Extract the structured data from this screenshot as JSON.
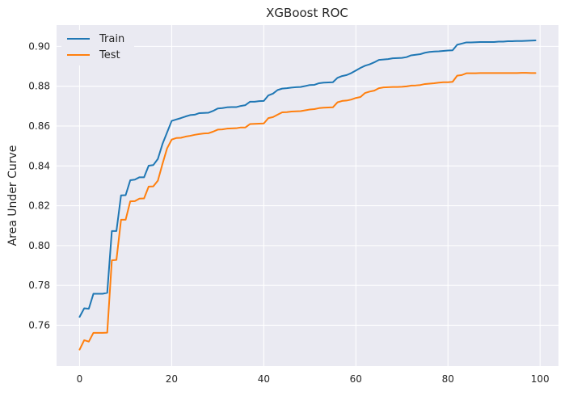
{
  "chart_data": {
    "type": "line",
    "title": "XGBoost ROC",
    "xlabel": "",
    "ylabel": "Area Under Curve",
    "xlim": [
      -5,
      104
    ],
    "ylim": [
      0.7395,
      0.9107
    ],
    "xticks": [
      0,
      20,
      40,
      60,
      80,
      100
    ],
    "yticks": [
      0.76,
      0.78,
      0.8,
      0.82,
      0.84,
      0.86,
      0.88,
      0.9
    ],
    "ytick_labels": [
      "0.76",
      "0.78",
      "0.80",
      "0.82",
      "0.84",
      "0.86",
      "0.88",
      "0.90"
    ],
    "xtick_labels": [
      "0",
      "20",
      "40",
      "60",
      "80",
      "100"
    ],
    "grid": true,
    "legend_position": "top-left",
    "colors": {
      "background": "#eaeaf2",
      "grid": "#ffffff",
      "Train": "#1f77b4",
      "Test": "#ff7f0e"
    },
    "series": [
      {
        "name": "Train",
        "x": [
          0,
          1,
          2,
          3,
          4,
          5,
          6,
          7,
          8,
          9,
          10,
          11,
          12,
          13,
          14,
          15,
          16,
          17,
          18,
          19,
          20,
          21,
          22,
          23,
          24,
          25,
          26,
          27,
          28,
          29,
          30,
          31,
          32,
          33,
          34,
          35,
          36,
          37,
          38,
          39,
          40,
          41,
          42,
          43,
          44,
          45,
          46,
          47,
          48,
          49,
          50,
          51,
          52,
          53,
          54,
          55,
          56,
          57,
          58,
          59,
          60,
          61,
          62,
          63,
          64,
          65,
          66,
          67,
          68,
          69,
          70,
          71,
          72,
          73,
          74,
          75,
          76,
          77,
          78,
          79,
          80,
          81,
          82,
          83,
          84,
          85,
          86,
          87,
          88,
          89,
          90,
          91,
          92,
          93,
          94,
          95,
          96,
          97,
          98,
          99
        ],
        "values": [
          0.7642,
          0.7685,
          0.7683,
          0.7758,
          0.7758,
          0.7758,
          0.7763,
          0.8073,
          0.8073,
          0.8252,
          0.8253,
          0.8328,
          0.8331,
          0.8343,
          0.8343,
          0.8401,
          0.8404,
          0.8435,
          0.851,
          0.8568,
          0.8626,
          0.8633,
          0.864,
          0.8648,
          0.8655,
          0.8657,
          0.8665,
          0.8666,
          0.8667,
          0.8676,
          0.8688,
          0.869,
          0.8694,
          0.8695,
          0.8695,
          0.8701,
          0.8705,
          0.8722,
          0.8722,
          0.8725,
          0.8726,
          0.8754,
          0.8763,
          0.8781,
          0.8788,
          0.879,
          0.8793,
          0.8795,
          0.8796,
          0.8801,
          0.8806,
          0.8807,
          0.8815,
          0.8818,
          0.8819,
          0.882,
          0.8842,
          0.8851,
          0.8856,
          0.8866,
          0.8879,
          0.8892,
          0.8903,
          0.891,
          0.892,
          0.8932,
          0.8934,
          0.8936,
          0.894,
          0.8941,
          0.8942,
          0.8946,
          0.8955,
          0.8958,
          0.8961,
          0.8968,
          0.8972,
          0.8974,
          0.8975,
          0.8977,
          0.8979,
          0.898,
          0.9008,
          0.9014,
          0.902,
          0.902,
          0.9021,
          0.9022,
          0.9022,
          0.9022,
          0.9022,
          0.9024,
          0.9024,
          0.9026,
          0.9026,
          0.9027,
          0.9027,
          0.9028,
          0.9029,
          0.903
        ]
      },
      {
        "name": "Test",
        "x": [
          0,
          1,
          2,
          3,
          4,
          5,
          6,
          7,
          8,
          9,
          10,
          11,
          12,
          13,
          14,
          15,
          16,
          17,
          18,
          19,
          20,
          21,
          22,
          23,
          24,
          25,
          26,
          27,
          28,
          29,
          30,
          31,
          32,
          33,
          34,
          35,
          36,
          37,
          38,
          39,
          40,
          41,
          42,
          43,
          44,
          45,
          46,
          47,
          48,
          49,
          50,
          51,
          52,
          53,
          54,
          55,
          56,
          57,
          58,
          59,
          60,
          61,
          62,
          63,
          64,
          65,
          66,
          67,
          68,
          69,
          70,
          71,
          72,
          73,
          74,
          75,
          76,
          77,
          78,
          79,
          80,
          81,
          82,
          83,
          84,
          85,
          86,
          87,
          88,
          89,
          90,
          91,
          92,
          93,
          94,
          95,
          96,
          97,
          98,
          99
        ],
        "values": [
          0.7478,
          0.7525,
          0.7518,
          0.7562,
          0.7562,
          0.7562,
          0.7563,
          0.7926,
          0.7928,
          0.813,
          0.813,
          0.8222,
          0.8223,
          0.8236,
          0.8237,
          0.8296,
          0.8297,
          0.8326,
          0.841,
          0.8488,
          0.8532,
          0.854,
          0.8541,
          0.8547,
          0.8551,
          0.8556,
          0.856,
          0.8563,
          0.8564,
          0.8572,
          0.8582,
          0.8583,
          0.8587,
          0.8588,
          0.8589,
          0.8593,
          0.8593,
          0.861,
          0.8611,
          0.8612,
          0.8613,
          0.864,
          0.8645,
          0.8657,
          0.8669,
          0.867,
          0.8673,
          0.8674,
          0.8675,
          0.8679,
          0.8683,
          0.8685,
          0.869,
          0.8692,
          0.8693,
          0.8694,
          0.8719,
          0.8726,
          0.8728,
          0.8733,
          0.8741,
          0.8746,
          0.8766,
          0.8773,
          0.8778,
          0.879,
          0.8794,
          0.8795,
          0.8796,
          0.8796,
          0.8797,
          0.8799,
          0.8803,
          0.8804,
          0.8806,
          0.8811,
          0.8813,
          0.8815,
          0.8818,
          0.882,
          0.882,
          0.8822,
          0.8853,
          0.8856,
          0.8865,
          0.8865,
          0.8865,
          0.8866,
          0.8866,
          0.8866,
          0.8866,
          0.8866,
          0.8866,
          0.8866,
          0.8866,
          0.8866,
          0.8867,
          0.8867,
          0.8866,
          0.8866
        ]
      }
    ]
  }
}
